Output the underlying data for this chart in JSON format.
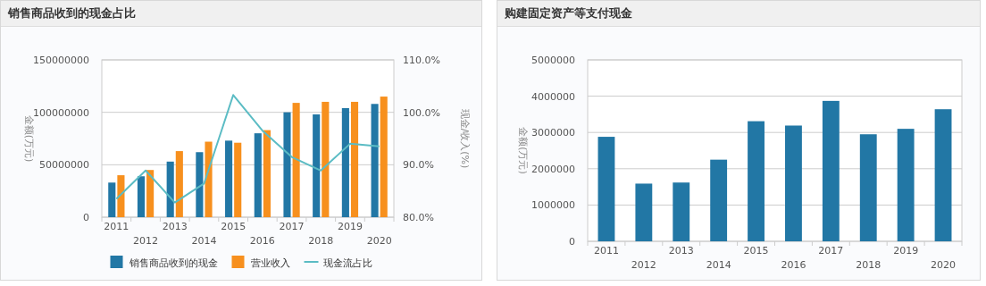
{
  "chart_data": [
    {
      "type": "bar",
      "title": "销售商品收到的现金占比",
      "categories": [
        "2011",
        "2012",
        "2013",
        "2014",
        "2015",
        "2016",
        "2017",
        "2018",
        "2019",
        "2020"
      ],
      "ylabel": "金额(万元)",
      "y2label": "现金/收入(%)",
      "ylim": [
        0,
        150000000
      ],
      "yticks": [
        0,
        50000000,
        100000000,
        150000000
      ],
      "y2lim": [
        80,
        110
      ],
      "y2ticks": [
        {
          "value": 80,
          "label": "80.0%"
        },
        {
          "value": 90,
          "label": "90.0%"
        },
        {
          "value": 100,
          "label": "100.0%"
        },
        {
          "value": 110,
          "label": "110.0%"
        }
      ],
      "grid": "y",
      "legend": "bottom",
      "series": [
        {
          "name": "销售商品收到的现金",
          "color": "#2277a5",
          "values": [
            33000000,
            39000000,
            53000000,
            62000000,
            73000000,
            80000000,
            100000000,
            98000000,
            104000000,
            108000000
          ]
        },
        {
          "name": "营业收入",
          "color": "#f7901e",
          "values": [
            40000000,
            45000000,
            63000000,
            72000000,
            71000000,
            83000000,
            109000000,
            110000000,
            110000000,
            115000000
          ]
        },
        {
          "name": "现金流占比",
          "type": "line",
          "axis": "y2",
          "color": "#5bbcc4",
          "values": [
            83.5,
            88.9,
            82.8,
            86.4,
            103.3,
            96.5,
            91.5,
            88.9,
            94.0,
            93.5
          ]
        }
      ]
    },
    {
      "type": "bar",
      "title": "购建固定资产等支付现金",
      "categories": [
        "2011",
        "2012",
        "2013",
        "2014",
        "2015",
        "2016",
        "2017",
        "2018",
        "2019",
        "2020"
      ],
      "ylabel": "金额(万元)",
      "ylim": [
        0,
        5000000
      ],
      "yticks": [
        0,
        1000000,
        2000000,
        3000000,
        4000000,
        5000000
      ],
      "grid": "y",
      "series": [
        {
          "color": "#2277a5",
          "values": [
            2880000,
            1590000,
            1620000,
            2250000,
            3310000,
            3190000,
            3870000,
            2950000,
            3100000,
            3640000
          ]
        }
      ]
    }
  ]
}
